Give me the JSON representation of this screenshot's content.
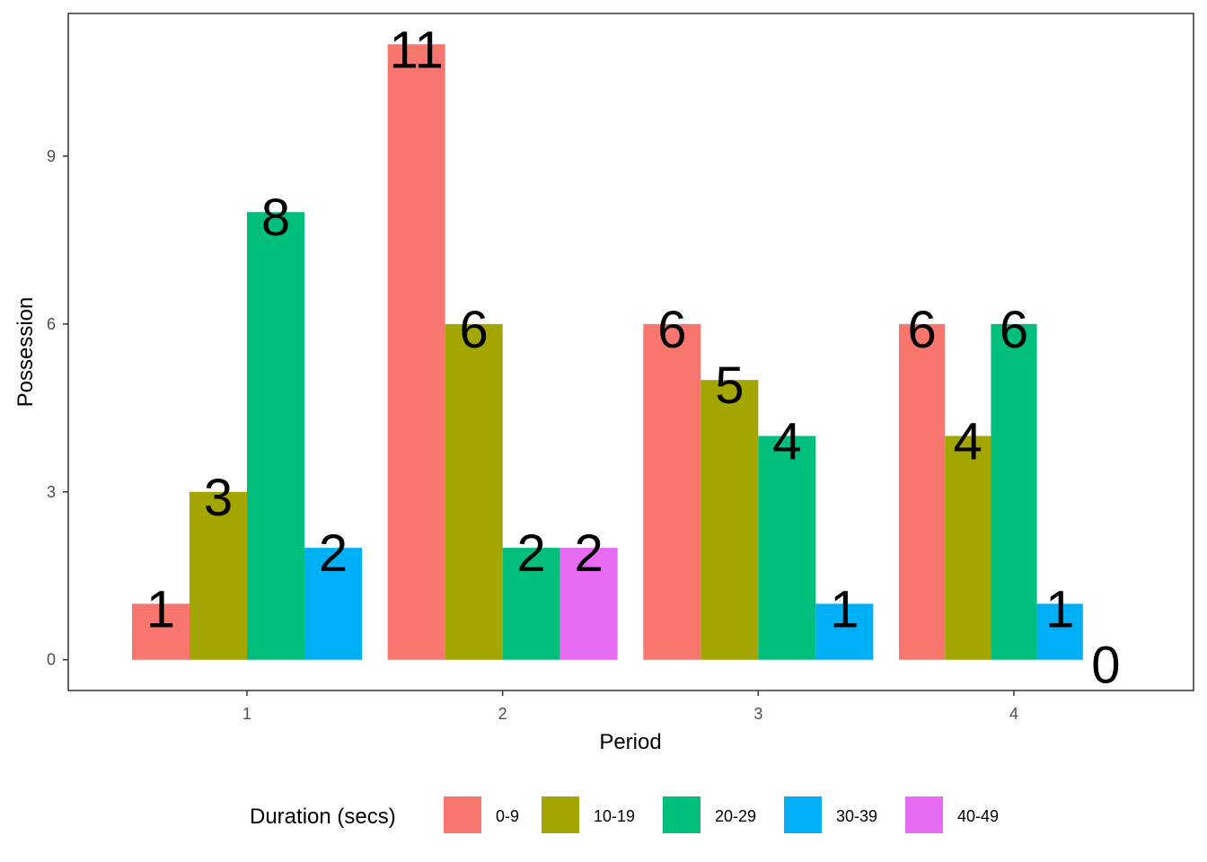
{
  "chart_data": {
    "type": "bar",
    "xlabel": "Period",
    "ylabel": "Possession",
    "categories": [
      "1",
      "2",
      "3",
      "4"
    ],
    "ylim": [
      -0.55,
      11.55
    ],
    "yticks": [
      0,
      3,
      6,
      9
    ],
    "legend": {
      "title": "Duration (secs)",
      "position": "bottom"
    },
    "series": [
      {
        "name": "0-9",
        "color": "#F8766D",
        "values": [
          1,
          11,
          6,
          6
        ]
      },
      {
        "name": "10-19",
        "color": "#A3A500",
        "values": [
          3,
          6,
          5,
          4
        ]
      },
      {
        "name": "20-29",
        "color": "#00BF7D",
        "values": [
          8,
          2,
          4,
          6
        ]
      },
      {
        "name": "30-39",
        "color": "#00B0F6",
        "values": [
          2,
          null,
          1,
          1
        ]
      },
      {
        "name": "40-49",
        "color": "#E76BF3",
        "values": [
          null,
          2,
          null,
          0
        ]
      }
    ],
    "groups": [
      [
        "0-9",
        "10-19",
        "20-29",
        "30-39"
      ],
      [
        "0-9",
        "10-19",
        "20-29",
        "40-49"
      ],
      [
        "0-9",
        "10-19",
        "20-29",
        "30-39"
      ],
      [
        "0-9",
        "10-19",
        "20-29",
        "30-39",
        "40-49"
      ]
    ]
  }
}
